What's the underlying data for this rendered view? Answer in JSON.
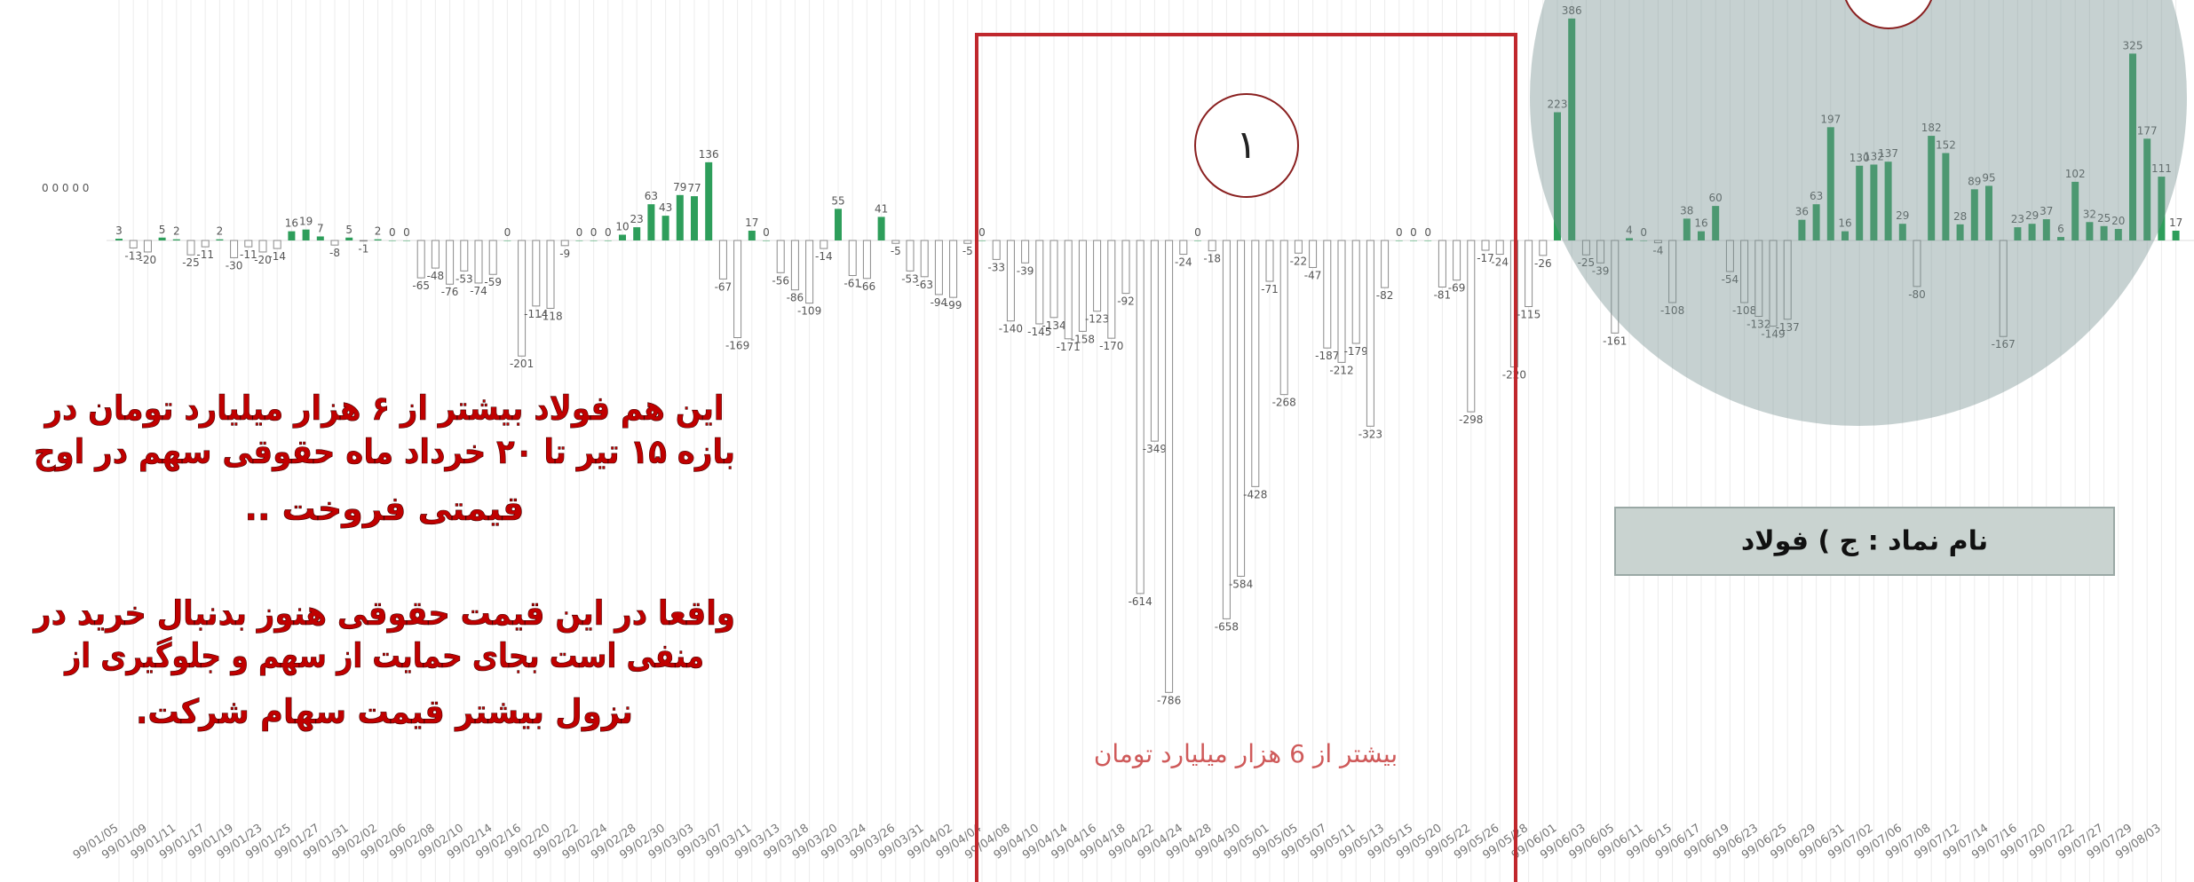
{
  "chart_data": {
    "type": "bar",
    "side_label": "0 0 0 0 0",
    "positive_color": "#2e9e5b",
    "negative_color": "#ffffff",
    "negative_stroke": "#8a8a8a",
    "grid": true,
    "categories": [
      "99/01/05",
      null,
      "99/01/09",
      null,
      "99/01/11",
      null,
      "99/01/17",
      null,
      "99/01/19",
      null,
      "99/01/23",
      null,
      "99/01/25",
      null,
      "99/01/27",
      null,
      "99/01/31",
      null,
      "99/02/02",
      null,
      "99/02/06",
      null,
      "99/02/08",
      null,
      "99/02/10",
      null,
      "99/02/14",
      null,
      "99/02/16",
      null,
      "99/02/20",
      null,
      "99/02/22",
      null,
      "99/02/24",
      null,
      "99/02/28",
      null,
      "99/02/30",
      null,
      "99/03/03",
      null,
      "99/03/07",
      null,
      "99/03/11",
      null,
      "99/03/13",
      null,
      "99/03/18",
      null,
      "99/03/20",
      null,
      "99/03/24",
      null,
      "99/03/26",
      null,
      "99/03/31",
      null,
      "99/04/02",
      null,
      "99/04/04",
      null,
      "99/04/08",
      null,
      "99/04/10",
      null,
      "99/04/14",
      null,
      "99/04/16",
      null,
      "99/04/18",
      null,
      "99/04/22",
      null,
      "99/04/24",
      null,
      "99/04/28",
      null,
      "99/04/30",
      null,
      "99/05/01",
      null,
      "99/05/05",
      null,
      "99/05/07",
      null,
      "99/05/11",
      null,
      "99/05/13",
      null,
      "99/05/15",
      null,
      "99/05/20",
      null,
      "99/05/22",
      null,
      "99/05/26",
      null,
      "99/05/28",
      null,
      "99/06/01",
      null,
      "99/06/03",
      null,
      "99/06/05",
      null,
      "99/06/11",
      null,
      "99/06/15",
      null,
      "99/06/17",
      null,
      "99/06/19",
      null,
      "99/06/23",
      null,
      "99/06/25",
      null,
      "99/06/29",
      null,
      "99/06/31",
      null,
      "99/07/02",
      null,
      "99/07/06",
      null,
      "99/07/08",
      null,
      "99/07/12",
      null,
      "99/07/14",
      null,
      "99/07/16",
      null,
      "99/07/20",
      null,
      "99/07/22",
      null,
      "99/07/27",
      null,
      "99/07/29",
      null,
      "99/08/03",
      null
    ],
    "values": [
      3,
      -13,
      -20,
      5,
      2,
      -25,
      -11,
      2,
      -30,
      -11,
      -20,
      -14,
      16,
      19,
      7,
      -8,
      5,
      -1,
      2,
      0,
      0,
      -65,
      -48,
      -76,
      -53,
      -74,
      -59,
      0,
      -201,
      -114,
      -118,
      -9,
      0,
      0,
      0,
      10,
      23,
      63,
      43,
      79,
      77,
      136,
      -67,
      -169,
      17,
      0,
      -56,
      -86,
      -109,
      -14,
      55,
      -61,
      -66,
      41,
      -5,
      -53,
      -63,
      -94,
      -99,
      -5,
      0,
      -33,
      -140,
      -39,
      -145,
      -134,
      -171,
      -158,
      -123,
      -170,
      -92,
      -614,
      -349,
      -786,
      -24,
      0,
      -18,
      -658,
      -584,
      -428,
      -71,
      -268,
      -22,
      -47,
      -187,
      -212,
      -179,
      -323,
      -82,
      0,
      0,
      0,
      -81,
      -69,
      -298,
      -17,
      -24,
      -220,
      -115,
      -26,
      223,
      386,
      -25,
      -39,
      -161,
      4,
      0,
      -4,
      -108,
      38,
      16,
      60,
      -54,
      -108,
      -132,
      -149,
      -137,
      36,
      63,
      197,
      16,
      130,
      132,
      137,
      29,
      -80,
      182,
      152,
      28,
      89,
      95,
      -167,
      23,
      29,
      37,
      6,
      102,
      32,
      25,
      20,
      325,
      177,
      111,
      17
    ]
  },
  "box_caption": "بیشتر از 6 هزار میلیارد تومان",
  "marker": "۱",
  "symbol_box": "نام نماد : ج ) فولاد",
  "note": {
    "lines": [
      "این هم فولاد بیشتر از ۶ هزار میلیارد تومان در",
      "بازه ۱۵ تیر تا ۲۰ خرداد ماه حقوقی سهم در اوج",
      "قیمتی فروخت ..",
      "واقعا در این قیمت حقوقی هنوز بدنبال خرید در",
      "منفی است بجای حمایت از سهم و جلوگیری از",
      "نزول بیشتر قیمت سهام شرکت."
    ]
  }
}
